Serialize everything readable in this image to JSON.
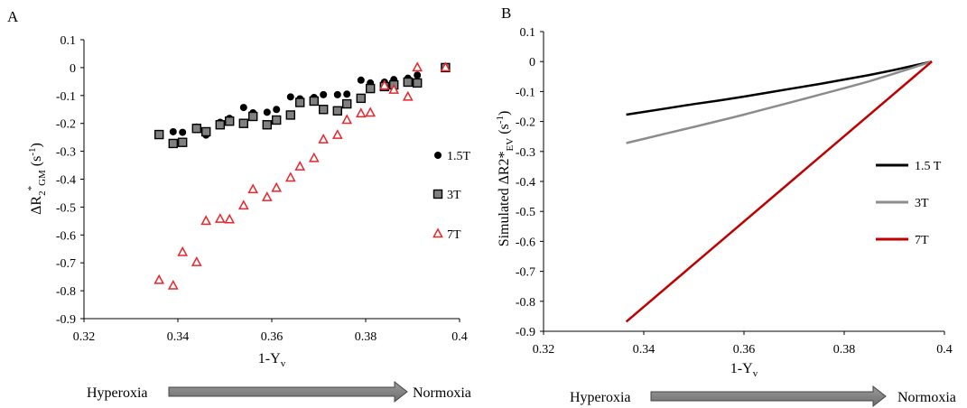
{
  "chart_data": [
    {
      "panel_label": "A",
      "type": "scatter",
      "xlabel": "1-Y",
      "xlabel_sub": "v",
      "ylabel_parts": [
        "ΔR",
        "2",
        "*",
        "GM",
        " (s",
        "-1",
        ")"
      ],
      "xlim": [
        0.32,
        0.4
      ],
      "ylim": [
        -0.9,
        0.1
      ],
      "x_ticks": [
        "0.32",
        "0.34",
        "0.36",
        "0.38",
        "0.4"
      ],
      "y_ticks": [
        "0.1",
        "0",
        "-0.1",
        "-0.2",
        "-0.3",
        "-0.4",
        "-0.5",
        "-0.6",
        "-0.7",
        "-0.8",
        "-0.9"
      ],
      "legend_position": "right",
      "series": [
        {
          "name": "1.5T",
          "marker": "circle",
          "color": "#000000",
          "points": [
            [
              0.336,
              -0.238
            ],
            [
              0.339,
              -0.23
            ],
            [
              0.341,
              -0.232
            ],
            [
              0.344,
              -0.213
            ],
            [
              0.346,
              -0.242
            ],
            [
              0.349,
              -0.196
            ],
            [
              0.351,
              -0.182
            ],
            [
              0.354,
              -0.143
            ],
            [
              0.356,
              -0.162
            ],
            [
              0.359,
              -0.16
            ],
            [
              0.361,
              -0.15
            ],
            [
              0.364,
              -0.105
            ],
            [
              0.366,
              -0.112
            ],
            [
              0.369,
              -0.107
            ],
            [
              0.371,
              -0.097
            ],
            [
              0.374,
              -0.097
            ],
            [
              0.376,
              -0.095
            ],
            [
              0.379,
              -0.045
            ],
            [
              0.381,
              -0.055
            ],
            [
              0.384,
              -0.052
            ],
            [
              0.386,
              -0.043
            ],
            [
              0.389,
              -0.038
            ],
            [
              0.391,
              -0.027
            ],
            [
              0.397,
              0.0
            ]
          ]
        },
        {
          "name": "3T",
          "marker": "square",
          "color": "#808080",
          "points": [
            [
              0.336,
              -0.24
            ],
            [
              0.339,
              -0.272
            ],
            [
              0.341,
              -0.268
            ],
            [
              0.344,
              -0.218
            ],
            [
              0.346,
              -0.23
            ],
            [
              0.349,
              -0.205
            ],
            [
              0.351,
              -0.192
            ],
            [
              0.354,
              -0.2
            ],
            [
              0.356,
              -0.175
            ],
            [
              0.359,
              -0.205
            ],
            [
              0.361,
              -0.188
            ],
            [
              0.364,
              -0.17
            ],
            [
              0.366,
              -0.125
            ],
            [
              0.369,
              -0.12
            ],
            [
              0.371,
              -0.15
            ],
            [
              0.374,
              -0.155
            ],
            [
              0.376,
              -0.13
            ],
            [
              0.379,
              -0.11
            ],
            [
              0.381,
              -0.075
            ],
            [
              0.384,
              -0.068
            ],
            [
              0.386,
              -0.062
            ],
            [
              0.389,
              -0.052
            ],
            [
              0.391,
              -0.055
            ],
            [
              0.397,
              0.0
            ]
          ]
        },
        {
          "name": "7T",
          "marker": "triangle",
          "color": "#e8262b",
          "points": [
            [
              0.336,
              -0.762
            ],
            [
              0.339,
              -0.782
            ],
            [
              0.341,
              -0.662
            ],
            [
              0.344,
              -0.698
            ],
            [
              0.346,
              -0.55
            ],
            [
              0.349,
              -0.543
            ],
            [
              0.351,
              -0.545
            ],
            [
              0.354,
              -0.495
            ],
            [
              0.356,
              -0.437
            ],
            [
              0.359,
              -0.465
            ],
            [
              0.361,
              -0.432
            ],
            [
              0.364,
              -0.395
            ],
            [
              0.366,
              -0.355
            ],
            [
              0.369,
              -0.325
            ],
            [
              0.371,
              -0.258
            ],
            [
              0.374,
              -0.242
            ],
            [
              0.376,
              -0.188
            ],
            [
              0.379,
              -0.165
            ],
            [
              0.381,
              -0.162
            ],
            [
              0.384,
              -0.065
            ],
            [
              0.386,
              -0.08
            ],
            [
              0.389,
              -0.105
            ],
            [
              0.391,
              0.0
            ],
            [
              0.397,
              0.0
            ]
          ]
        }
      ],
      "arrow_left_label": "Hyperoxia",
      "arrow_right_label": "Normoxia"
    },
    {
      "panel_label": "B",
      "type": "line",
      "xlabel": "1-Y",
      "xlabel_sub": "v",
      "ylabel_parts": [
        "Simulated ΔR2*",
        "EV",
        " (s",
        "-1",
        ")"
      ],
      "xlim": [
        0.32,
        0.4
      ],
      "ylim": [
        -0.9,
        0.1
      ],
      "x_ticks": [
        "0.32",
        "0.34",
        "0.36",
        "0.38",
        "0.4"
      ],
      "y_ticks": [
        "0.1",
        "0",
        "-0.1",
        "-0.2",
        "-0.3",
        "-0.4",
        "-0.5",
        "-0.6",
        "-0.7",
        "-0.8",
        "-0.9"
      ],
      "legend_position": "right",
      "series": [
        {
          "name": "1.5 T",
          "color": "#000000",
          "points": [
            [
              0.3365,
              -0.177
            ],
            [
              0.34,
              -0.168
            ],
            [
              0.345,
              -0.155
            ],
            [
              0.35,
              -0.142
            ],
            [
              0.355,
              -0.13
            ],
            [
              0.36,
              -0.117
            ],
            [
              0.365,
              -0.103
            ],
            [
              0.37,
              -0.089
            ],
            [
              0.375,
              -0.075
            ],
            [
              0.38,
              -0.06
            ],
            [
              0.385,
              -0.045
            ],
            [
              0.39,
              -0.028
            ],
            [
              0.3975,
              0.0
            ]
          ]
        },
        {
          "name": "3T",
          "color": "#8c8c8c",
          "points": [
            [
              0.3365,
              -0.272
            ],
            [
              0.34,
              -0.258
            ],
            [
              0.345,
              -0.238
            ],
            [
              0.35,
              -0.218
            ],
            [
              0.355,
              -0.198
            ],
            [
              0.36,
              -0.177
            ],
            [
              0.365,
              -0.155
            ],
            [
              0.37,
              -0.133
            ],
            [
              0.375,
              -0.111
            ],
            [
              0.38,
              -0.089
            ],
            [
              0.385,
              -0.066
            ],
            [
              0.39,
              -0.04
            ],
            [
              0.3975,
              0.0
            ]
          ]
        },
        {
          "name": "7T",
          "color": "#c00000",
          "points": [
            [
              0.3365,
              -0.868
            ],
            [
              0.3975,
              0.0
            ]
          ]
        }
      ],
      "arrow_left_label": "Hyperoxia",
      "arrow_right_label": "Normoxia"
    }
  ]
}
